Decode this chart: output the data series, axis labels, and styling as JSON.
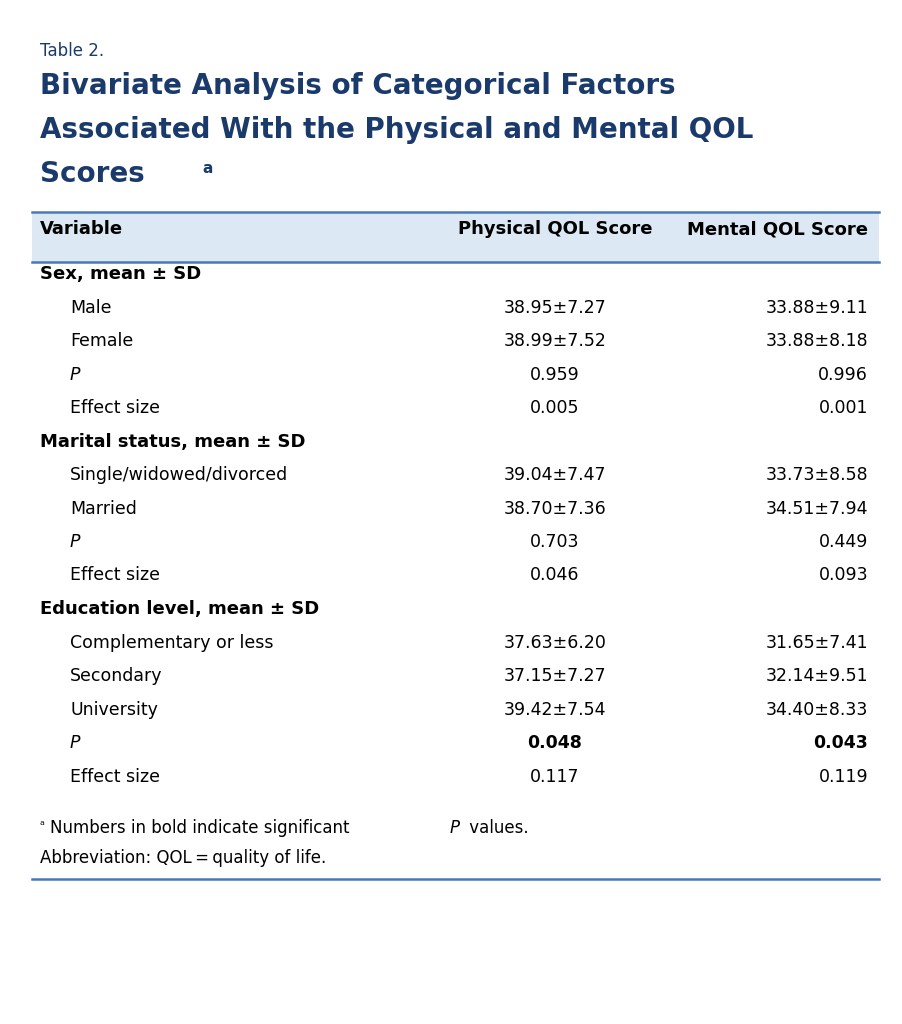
{
  "table_label": "Table 2.",
  "title_lines": [
    "Bivariate Analysis of Categorical Factors",
    "Associated With the Physical and Mental QOL",
    "Scores"
  ],
  "header": [
    "Variable",
    "Physical QOL Score",
    "Mental QOL Score"
  ],
  "header_bg": "#dce9f5",
  "rows": [
    {
      "label": "Sex, mean ± SD",
      "bold": true,
      "italic": false,
      "indent": false,
      "physical": "",
      "mental": "",
      "physical_bold": false,
      "mental_bold": false
    },
    {
      "label": "Male",
      "bold": false,
      "italic": false,
      "indent": true,
      "physical": "38.95±7.27",
      "mental": "33.88±9.11",
      "physical_bold": false,
      "mental_bold": false
    },
    {
      "label": "Female",
      "bold": false,
      "italic": false,
      "indent": true,
      "physical": "38.99±7.52",
      "mental": "33.88±8.18",
      "physical_bold": false,
      "mental_bold": false
    },
    {
      "label": "P",
      "bold": false,
      "italic": true,
      "indent": true,
      "physical": "0.959",
      "mental": "0.996",
      "physical_bold": false,
      "mental_bold": false
    },
    {
      "label": "Effect size",
      "bold": false,
      "italic": false,
      "indent": true,
      "physical": "0.005",
      "mental": "0.001",
      "physical_bold": false,
      "mental_bold": false
    },
    {
      "label": "Marital status, mean ± SD",
      "bold": true,
      "italic": false,
      "indent": false,
      "physical": "",
      "mental": "",
      "physical_bold": false,
      "mental_bold": false
    },
    {
      "label": "Single/widowed/divorced",
      "bold": false,
      "italic": false,
      "indent": true,
      "physical": "39.04±7.47",
      "mental": "33.73±8.58",
      "physical_bold": false,
      "mental_bold": false
    },
    {
      "label": "Married",
      "bold": false,
      "italic": false,
      "indent": true,
      "physical": "38.70±7.36",
      "mental": "34.51±7.94",
      "physical_bold": false,
      "mental_bold": false
    },
    {
      "label": "P",
      "bold": false,
      "italic": true,
      "indent": true,
      "physical": "0.703",
      "mental": "0.449",
      "physical_bold": false,
      "mental_bold": false
    },
    {
      "label": "Effect size",
      "bold": false,
      "italic": false,
      "indent": true,
      "physical": "0.046",
      "mental": "0.093",
      "physical_bold": false,
      "mental_bold": false
    },
    {
      "label": "Education level, mean ± SD",
      "bold": true,
      "italic": false,
      "indent": false,
      "physical": "",
      "mental": "",
      "physical_bold": false,
      "mental_bold": false
    },
    {
      "label": "Complementary or less",
      "bold": false,
      "italic": false,
      "indent": true,
      "physical": "37.63±6.20",
      "mental": "31.65±7.41",
      "physical_bold": false,
      "mental_bold": false
    },
    {
      "label": "Secondary",
      "bold": false,
      "italic": false,
      "indent": true,
      "physical": "37.15±7.27",
      "mental": "32.14±9.51",
      "physical_bold": false,
      "mental_bold": false
    },
    {
      "label": "University",
      "bold": false,
      "italic": false,
      "indent": true,
      "physical": "39.42±7.54",
      "mental": "34.40±8.33",
      "physical_bold": false,
      "mental_bold": false
    },
    {
      "label": "P",
      "bold": false,
      "italic": true,
      "indent": true,
      "physical": "0.048",
      "mental": "0.043",
      "physical_bold": true,
      "mental_bold": true
    },
    {
      "label": "Effect size",
      "bold": false,
      "italic": false,
      "indent": true,
      "physical": "0.117",
      "mental": "0.119",
      "physical_bold": false,
      "mental_bold": false
    }
  ],
  "title_color": "#1a3a6b",
  "table_label_color": "#1a3a6b",
  "header_text_color": "#000000",
  "body_text_color": "#000000",
  "bg_color": "#ffffff",
  "border_color": "#4a7ab5",
  "fig_width": 9.03,
  "fig_height": 10.24,
  "dpi": 100
}
